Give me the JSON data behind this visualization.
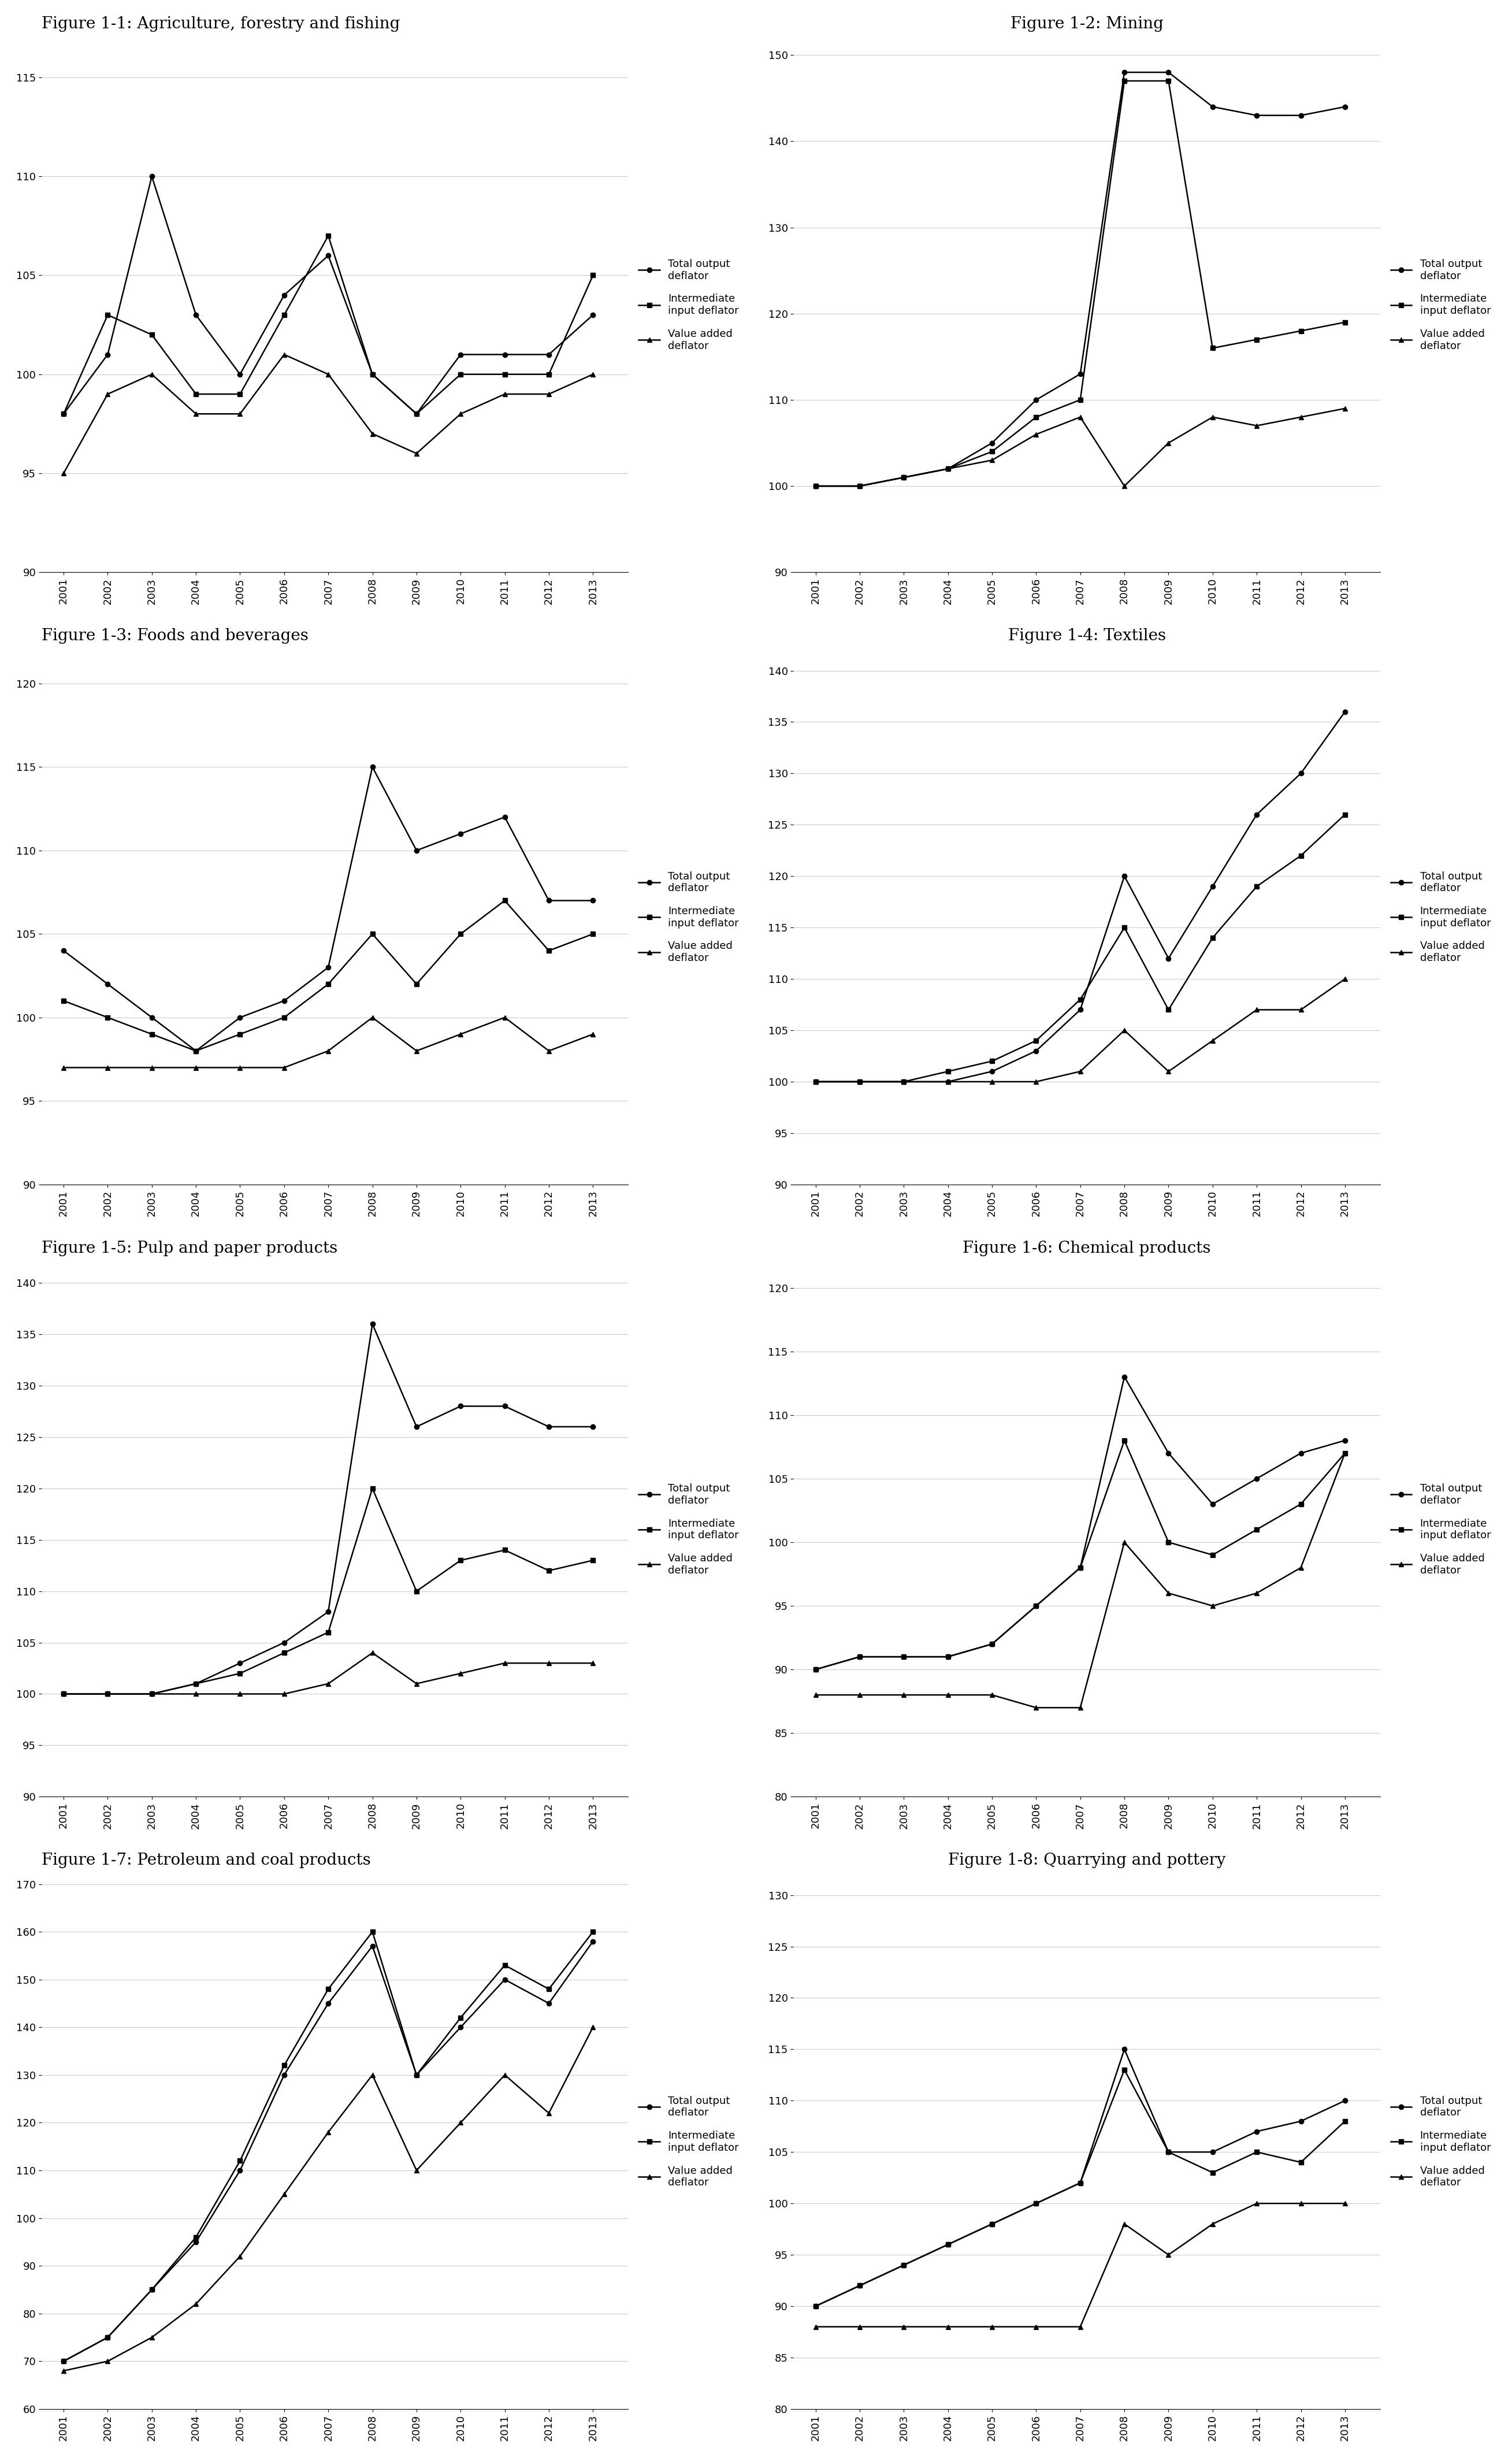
{
  "years": [
    2001,
    2002,
    2003,
    2004,
    2005,
    2006,
    2007,
    2008,
    2009,
    2010,
    2011,
    2012,
    2013
  ],
  "figures": [
    {
      "title": "Figure 1-1: Agriculture, forestry and fishing",
      "ylim": [
        90,
        117
      ],
      "yticks": [
        90,
        95,
        100,
        105,
        110,
        115
      ],
      "total_output": [
        98,
        101,
        110,
        103,
        100,
        104,
        106,
        100,
        98,
        101,
        101,
        101,
        103
      ],
      "intermediate_input": [
        98,
        103,
        102,
        99,
        99,
        103,
        107,
        100,
        98,
        100,
        100,
        100,
        105
      ],
      "value_added": [
        95,
        99,
        100,
        98,
        98,
        101,
        100,
        97,
        96,
        98,
        99,
        99,
        100
      ]
    },
    {
      "title": "Figure 1-2: Mining",
      "ylim": [
        90,
        152
      ],
      "yticks": [
        90,
        100,
        110,
        120,
        130,
        140,
        150
      ],
      "total_output": [
        100,
        100,
        101,
        102,
        105,
        110,
        113,
        148,
        148,
        144,
        143,
        143,
        144
      ],
      "intermediate_input": [
        100,
        100,
        101,
        102,
        104,
        108,
        110,
        147,
        147,
        116,
        117,
        118,
        119
      ],
      "value_added": [
        100,
        100,
        101,
        102,
        103,
        106,
        108,
        100,
        105,
        108,
        107,
        108,
        109
      ]
    },
    {
      "title": "Figure 1-3: Foods and beverages",
      "ylim": [
        90,
        122
      ],
      "yticks": [
        90,
        95,
        100,
        105,
        110,
        115,
        120
      ],
      "total_output": [
        104,
        102,
        100,
        98,
        100,
        101,
        103,
        115,
        110,
        111,
        112,
        107,
        107
      ],
      "intermediate_input": [
        101,
        100,
        99,
        98,
        99,
        100,
        102,
        105,
        102,
        105,
        107,
        104,
        105
      ],
      "value_added": [
        97,
        97,
        97,
        97,
        97,
        97,
        98,
        100,
        98,
        99,
        100,
        98,
        99
      ]
    },
    {
      "title": "Figure 1-4: Textiles",
      "ylim": [
        90,
        142
      ],
      "yticks": [
        90,
        95,
        100,
        105,
        110,
        115,
        120,
        125,
        130,
        135,
        140
      ],
      "total_output": [
        100,
        100,
        100,
        100,
        101,
        103,
        107,
        120,
        112,
        119,
        126,
        130,
        136
      ],
      "intermediate_input": [
        100,
        100,
        100,
        101,
        102,
        104,
        108,
        115,
        107,
        114,
        119,
        122,
        126
      ],
      "value_added": [
        100,
        100,
        100,
        100,
        100,
        100,
        101,
        105,
        101,
        104,
        107,
        107,
        110
      ]
    },
    {
      "title": "Figure 1-5: Pulp and paper products",
      "ylim": [
        90,
        142
      ],
      "yticks": [
        90,
        95,
        100,
        105,
        110,
        115,
        120,
        125,
        130,
        135,
        140
      ],
      "total_output": [
        100,
        100,
        100,
        101,
        103,
        105,
        108,
        136,
        126,
        128,
        128,
        126,
        126
      ],
      "intermediate_input": [
        100,
        100,
        100,
        101,
        102,
        104,
        106,
        120,
        110,
        113,
        114,
        112,
        113
      ],
      "value_added": [
        100,
        100,
        100,
        100,
        100,
        100,
        101,
        104,
        101,
        102,
        103,
        103,
        103
      ]
    },
    {
      "title": "Figure 1-6: Chemical products",
      "ylim": [
        80,
        122
      ],
      "yticks": [
        80,
        85,
        90,
        95,
        100,
        105,
        110,
        115,
        120
      ],
      "total_output": [
        90,
        91,
        91,
        91,
        92,
        95,
        98,
        113,
        107,
        103,
        105,
        107,
        108
      ],
      "intermediate_input": [
        90,
        91,
        91,
        91,
        92,
        95,
        98,
        108,
        100,
        99,
        101,
        103,
        107
      ],
      "value_added": [
        88,
        88,
        88,
        88,
        88,
        87,
        87,
        100,
        96,
        95,
        96,
        98,
        107
      ]
    },
    {
      "title": "Figure 1-7: Petroleum and coal products",
      "ylim": [
        60,
        172
      ],
      "yticks": [
        60,
        70,
        80,
        90,
        100,
        110,
        120,
        130,
        140,
        150,
        160,
        170
      ],
      "total_output": [
        70,
        75,
        85,
        95,
        110,
        130,
        145,
        157,
        130,
        140,
        150,
        145,
        158
      ],
      "intermediate_input": [
        70,
        75,
        85,
        96,
        112,
        132,
        148,
        160,
        130,
        142,
        153,
        148,
        160
      ],
      "value_added": [
        68,
        70,
        75,
        82,
        92,
        105,
        118,
        130,
        110,
        120,
        130,
        122,
        140
      ]
    },
    {
      "title": "Figure 1-8: Quarrying and pottery",
      "ylim": [
        80,
        132
      ],
      "yticks": [
        80,
        85,
        90,
        95,
        100,
        105,
        110,
        115,
        120,
        125,
        130
      ],
      "total_output": [
        90,
        92,
        94,
        96,
        98,
        100,
        102,
        115,
        105,
        105,
        107,
        108,
        110
      ],
      "intermediate_input": [
        90,
        92,
        94,
        96,
        98,
        100,
        102,
        113,
        105,
        103,
        105,
        104,
        108
      ],
      "value_added": [
        88,
        88,
        88,
        88,
        88,
        88,
        88,
        98,
        95,
        98,
        100,
        100,
        100
      ]
    }
  ],
  "line_styles": {
    "total_output": {
      "color": "#000000",
      "marker": "o",
      "linestyle": "-",
      "linewidth": 1.8,
      "markersize": 6
    },
    "intermediate_input": {
      "color": "#000000",
      "marker": "s",
      "linestyle": "-",
      "linewidth": 1.8,
      "markersize": 6
    },
    "value_added": {
      "color": "#000000",
      "marker": "^",
      "linestyle": "-",
      "linewidth": 1.8,
      "markersize": 6
    }
  },
  "legend_labels": [
    "Total output\ndeflator",
    "Intermediate\ninput deflator",
    "Value added\ndeflator"
  ]
}
